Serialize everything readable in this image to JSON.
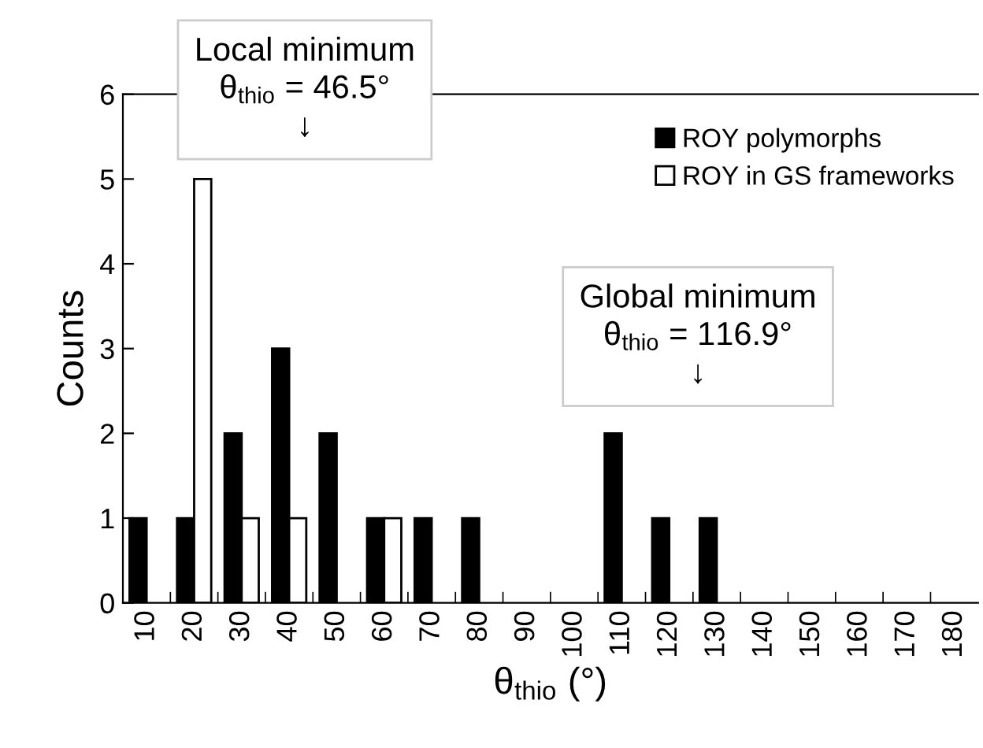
{
  "chart_data": {
    "type": "bar",
    "xlabel": "θ$_{thio}$ (°)",
    "ylabel": "Counts",
    "categories": [
      "10",
      "20",
      "30",
      "40",
      "50",
      "60",
      "70",
      "80",
      "90",
      "100",
      "110",
      "120",
      "130",
      "140",
      "150",
      "160",
      "170",
      "180"
    ],
    "series": [
      {
        "name": "ROY polymorphs",
        "color": "#000000",
        "values": [
          1,
          1,
          2,
          3,
          2,
          1,
          1,
          1,
          0,
          0,
          2,
          1,
          1,
          0,
          0,
          0,
          0,
          0
        ]
      },
      {
        "name": "ROY in GS frameworks",
        "color": "#ffffff",
        "values": [
          0,
          5,
          1,
          1,
          0,
          1,
          0,
          0,
          0,
          0,
          0,
          0,
          0,
          0,
          0,
          0,
          0,
          0
        ]
      }
    ],
    "ylim": [
      0,
      6
    ],
    "yticks": [
      0,
      1,
      2,
      3,
      4,
      5,
      6
    ],
    "grid": false,
    "legend": "top right",
    "annotations": [
      "Local minimum\nθ$_{thio}$ = 46.5°\n↓",
      "Global minimum\nθ$_{thio}$ = 116.9°\n↓"
    ]
  }
}
